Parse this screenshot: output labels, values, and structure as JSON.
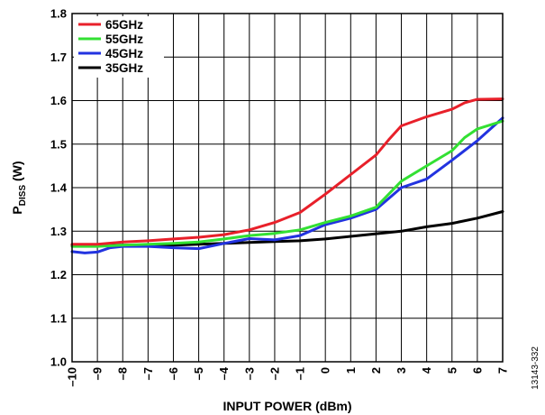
{
  "chart_data": {
    "type": "line",
    "xlabel": "INPUT POWER (dBm)",
    "ylabel_main": "P",
    "ylabel_sub": "DISS",
    "ylabel_unit": " (W)",
    "xlim": [
      -10,
      7
    ],
    "ylim": [
      1.0,
      1.8
    ],
    "x_ticks": [
      -10,
      -9,
      -8,
      -7,
      -6,
      -5,
      -4,
      -3,
      -2,
      -1,
      0,
      1,
      2,
      3,
      4,
      5,
      6,
      7
    ],
    "x_tick_labels": [
      "–10",
      "–9",
      "–8",
      "–7",
      "–6",
      "–5",
      "–4",
      "–3",
      "–2",
      "–1",
      "0",
      "1",
      "2",
      "3",
      "4",
      "5",
      "6",
      "7"
    ],
    "y_ticks": [
      1.0,
      1.1,
      1.2,
      1.3,
      1.4,
      1.5,
      1.6,
      1.7,
      1.8
    ],
    "y_tick_labels": [
      "1.0",
      "1.1",
      "1.2",
      "1.3",
      "1.4",
      "1.5",
      "1.6",
      "1.7",
      "1.8"
    ],
    "grid": true,
    "legend_position": "top-left",
    "figure_id": "13143-332",
    "series": [
      {
        "name": "65GHz",
        "color": "#e8202a",
        "x": [
          -10,
          -9,
          -8,
          -7,
          -6,
          -5,
          -4,
          -3,
          -2,
          -1,
          0,
          1,
          2,
          2.5,
          3,
          4,
          5,
          5.5,
          6,
          7
        ],
        "y": [
          1.27,
          1.27,
          1.275,
          1.278,
          1.282,
          1.286,
          1.292,
          1.303,
          1.32,
          1.343,
          1.385,
          1.43,
          1.475,
          1.51,
          1.542,
          1.563,
          1.58,
          1.595,
          1.603,
          1.604
        ]
      },
      {
        "name": "55GHz",
        "color": "#33e033",
        "x": [
          -10,
          -9,
          -8,
          -7,
          -6,
          -5,
          -4,
          -3,
          -2,
          -1,
          0,
          1,
          2,
          3,
          4,
          5,
          5.5,
          6,
          7
        ],
        "y": [
          1.265,
          1.265,
          1.268,
          1.27,
          1.272,
          1.275,
          1.282,
          1.29,
          1.295,
          1.303,
          1.32,
          1.335,
          1.355,
          1.415,
          1.45,
          1.485,
          1.515,
          1.535,
          1.553
        ]
      },
      {
        "name": "45GHz",
        "color": "#2233e0",
        "x": [
          -10,
          -9.5,
          -9,
          -8.5,
          -8,
          -7,
          -6,
          -5,
          -4,
          -3,
          -2,
          -1,
          0,
          1,
          2,
          3,
          4,
          5,
          6,
          7
        ],
        "y": [
          1.253,
          1.25,
          1.252,
          1.262,
          1.265,
          1.265,
          1.262,
          1.26,
          1.272,
          1.283,
          1.28,
          1.29,
          1.315,
          1.33,
          1.35,
          1.4,
          1.42,
          1.463,
          1.508,
          1.56
        ]
      },
      {
        "name": "35GHz",
        "color": "#000000",
        "x": [
          -10,
          -9,
          -8,
          -7,
          -6,
          -5,
          -4,
          -3,
          -2,
          -1,
          0,
          1,
          2,
          3,
          4,
          5,
          6,
          7
        ],
        "y": [
          1.268,
          1.268,
          1.268,
          1.268,
          1.268,
          1.27,
          1.272,
          1.274,
          1.276,
          1.278,
          1.282,
          1.288,
          1.294,
          1.3,
          1.31,
          1.318,
          1.33,
          1.345
        ]
      }
    ]
  }
}
